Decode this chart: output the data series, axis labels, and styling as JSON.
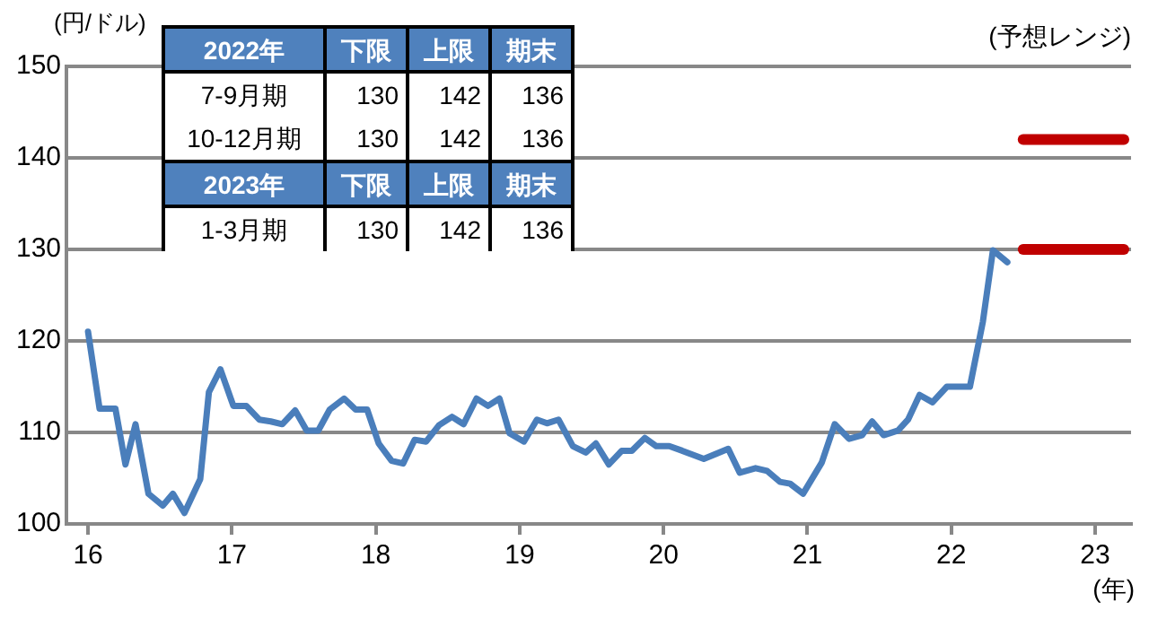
{
  "chart_data": {
    "type": "line",
    "ylabel": "(円/ドル)",
    "xlabel": "(年)",
    "annotations": [
      "(予想レンジ)",
      "2022年",
      "下限",
      "上限",
      "期末",
      "7-9月期",
      "130",
      "142",
      "136",
      "10-12月期",
      "130",
      "142",
      "136",
      "2023年",
      "下限",
      "上限",
      "期末",
      "1-3月期",
      "130",
      "142",
      "136"
    ],
    "xlim": [
      15.85,
      23.25
    ],
    "xticks": [
      16,
      17,
      18,
      19,
      20,
      21,
      22,
      23
    ],
    "ylim": [
      100,
      150
    ],
    "yticks": [
      100,
      110,
      120,
      130,
      140,
      150
    ],
    "grid": "y",
    "legend": false,
    "marker": "none",
    "line_style": "solid",
    "series": [
      {
        "color": "#4a7ebb",
        "x": [
          16.0,
          16.08,
          16.19,
          16.26,
          16.33,
          16.42,
          16.52,
          16.59,
          16.67,
          16.78,
          16.84,
          16.92,
          17.01,
          17.1,
          17.19,
          17.27,
          17.35,
          17.44,
          17.52,
          17.6,
          17.68,
          17.78,
          17.86,
          17.94,
          18.02,
          18.11,
          18.19,
          18.27,
          18.35,
          18.44,
          18.53,
          18.61,
          18.7,
          18.78,
          18.86,
          18.93,
          19.03,
          19.12,
          19.19,
          19.27,
          19.37,
          19.46,
          19.53,
          19.62,
          19.71,
          19.78,
          19.87,
          19.95,
          20.04,
          20.13,
          20.28,
          20.45,
          20.53,
          20.64,
          20.72,
          20.81,
          20.88,
          20.97,
          21.1,
          21.19,
          21.29,
          21.38,
          21.45,
          21.53,
          21.63,
          21.7,
          21.78,
          21.87,
          21.97,
          22.13,
          22.22,
          22.29,
          22.39
        ],
        "values": [
          121.0,
          112.6,
          112.6,
          106.5,
          110.9,
          103.3,
          102.0,
          103.3,
          101.2,
          104.9,
          114.4,
          116.9,
          112.9,
          112.9,
          111.4,
          111.2,
          110.9,
          112.4,
          110.2,
          110.2,
          112.5,
          113.7,
          112.5,
          112.5,
          108.8,
          106.9,
          106.6,
          109.2,
          109.0,
          110.8,
          111.7,
          110.9,
          113.7,
          112.9,
          113.7,
          109.9,
          109.0,
          111.4,
          111.0,
          111.4,
          108.5,
          107.8,
          108.8,
          106.5,
          108.0,
          108.0,
          109.4,
          108.5,
          108.5,
          108.0,
          107.1,
          108.2,
          105.6,
          106.1,
          105.8,
          104.6,
          104.4,
          103.3,
          106.7,
          110.9,
          109.3,
          109.7,
          111.2,
          109.7,
          110.2,
          111.4,
          114.1,
          113.3,
          115.0,
          115.0,
          122.1,
          129.9,
          128.6
        ]
      },
      {
        "color": "#c00000",
        "x": [
          22.5,
          23.2
        ],
        "values": [
          142,
          142
        ]
      },
      {
        "color": "#c00000",
        "x": [
          22.5,
          23.2
        ],
        "values": [
          130,
          130
        ]
      }
    ]
  }
}
